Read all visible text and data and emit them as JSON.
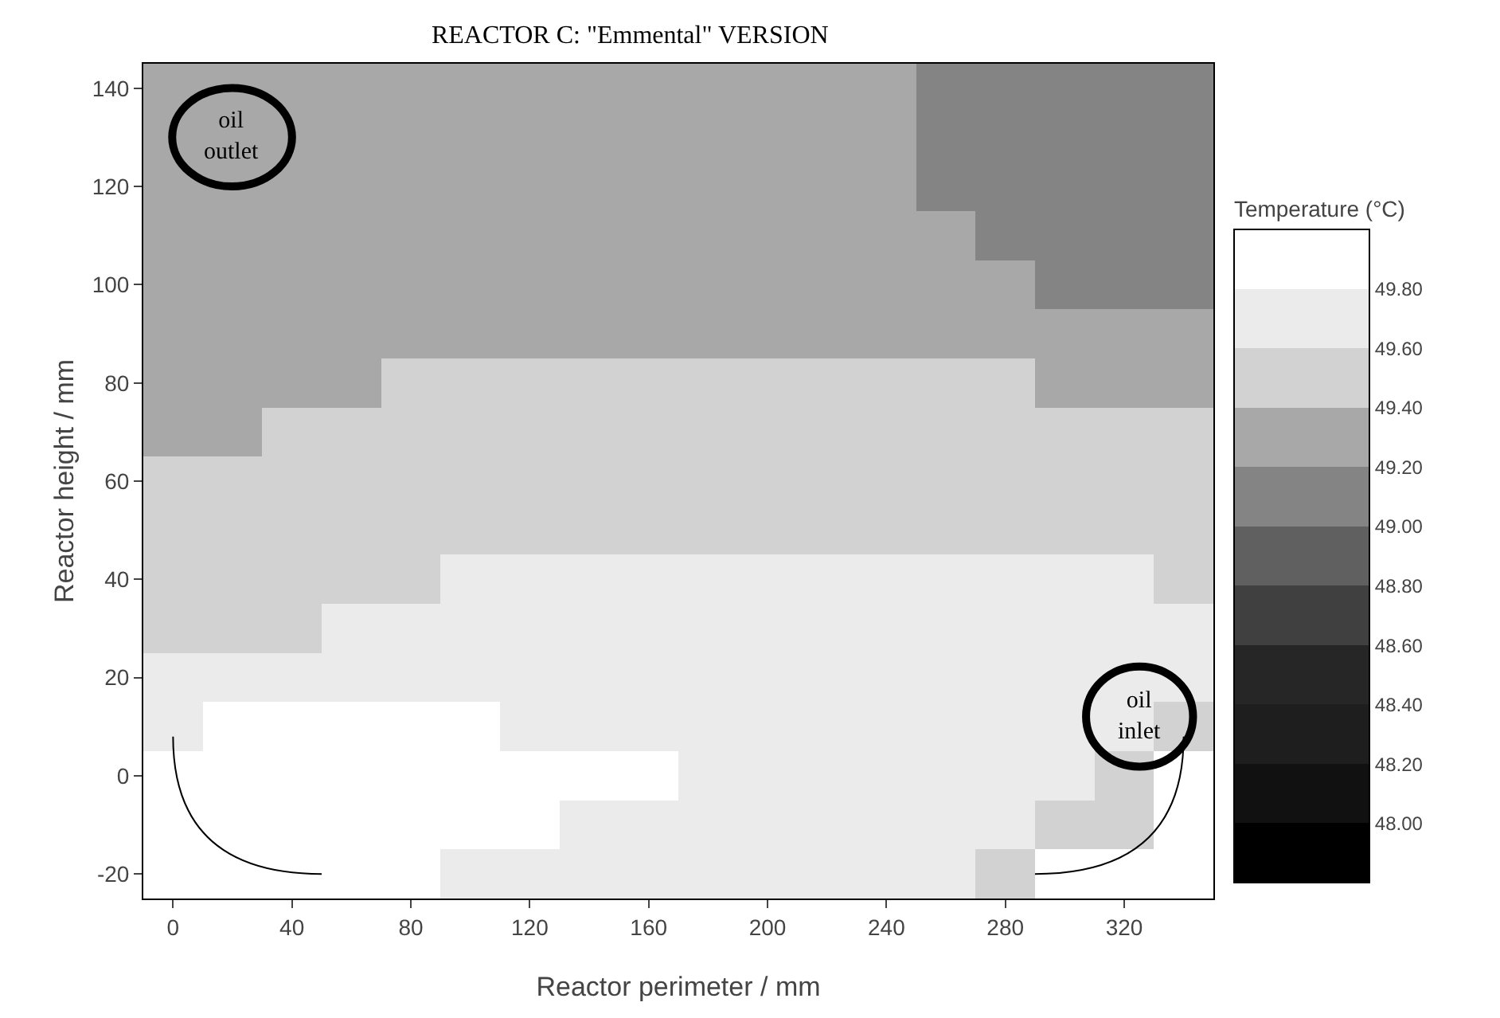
{
  "chart_data": {
    "type": "heatmap",
    "title": "REACTOR C: \"Emmental\" VERSION",
    "xlabel": "Reactor perimeter / mm",
    "ylabel": "Reactor height / mm",
    "clabel": "Temperature (°C)",
    "categories": [
      "0",
      null,
      "40",
      null,
      "80",
      null,
      "120",
      null,
      "160",
      null,
      "200",
      null,
      "240",
      null,
      "280",
      null,
      "320",
      null
    ],
    "y_categories": [
      "140",
      null,
      "120",
      null,
      "100",
      null,
      "80",
      null,
      "60",
      null,
      "40",
      null,
      "20",
      null,
      "0",
      null,
      "-20"
    ],
    "cells": [
      [
        49.3,
        49.3,
        49.3,
        49.3,
        49.3,
        49.3,
        49.3,
        49.3,
        49.3,
        49.3,
        49.3,
        49.3,
        49.3,
        49.1,
        49.1,
        49.1,
        49.1,
        49.1
      ],
      [
        49.3,
        49.3,
        49.3,
        49.3,
        49.3,
        49.3,
        49.3,
        49.3,
        49.3,
        49.3,
        49.3,
        49.3,
        49.3,
        49.1,
        49.1,
        49.1,
        49.1,
        49.1
      ],
      [
        49.3,
        49.3,
        49.3,
        49.3,
        49.3,
        49.3,
        49.3,
        49.3,
        49.3,
        49.3,
        49.3,
        49.3,
        49.3,
        49.1,
        49.1,
        49.1,
        49.1,
        49.1
      ],
      [
        49.3,
        49.3,
        49.3,
        49.3,
        49.3,
        49.3,
        49.3,
        49.3,
        49.3,
        49.3,
        49.3,
        49.3,
        49.3,
        49.3,
        49.1,
        49.1,
        49.1,
        49.1
      ],
      [
        49.3,
        49.3,
        49.3,
        49.3,
        49.3,
        49.3,
        49.3,
        49.3,
        49.3,
        49.3,
        49.3,
        49.3,
        49.3,
        49.3,
        49.3,
        49.1,
        49.1,
        49.1
      ],
      [
        49.3,
        49.3,
        49.3,
        49.3,
        49.3,
        49.3,
        49.3,
        49.3,
        49.3,
        49.3,
        49.3,
        49.3,
        49.3,
        49.3,
        49.3,
        49.3,
        49.3,
        49.3
      ],
      [
        49.3,
        49.3,
        49.3,
        49.3,
        49.5,
        49.5,
        49.5,
        49.5,
        49.5,
        49.5,
        49.5,
        49.5,
        49.5,
        49.5,
        49.5,
        49.3,
        49.3,
        49.3
      ],
      [
        49.3,
        49.3,
        49.5,
        49.5,
        49.5,
        49.5,
        49.5,
        49.5,
        49.5,
        49.5,
        49.5,
        49.5,
        49.5,
        49.5,
        49.5,
        49.5,
        49.5,
        49.5
      ],
      [
        49.5,
        49.5,
        49.5,
        49.5,
        49.5,
        49.5,
        49.5,
        49.5,
        49.5,
        49.5,
        49.5,
        49.5,
        49.5,
        49.5,
        49.5,
        49.5,
        49.5,
        49.5
      ],
      [
        49.5,
        49.5,
        49.5,
        49.5,
        49.5,
        49.5,
        49.5,
        49.5,
        49.5,
        49.5,
        49.5,
        49.5,
        49.5,
        49.5,
        49.5,
        49.5,
        49.5,
        49.5
      ],
      [
        49.5,
        49.5,
        49.5,
        49.5,
        49.5,
        49.7,
        49.7,
        49.7,
        49.7,
        49.7,
        49.7,
        49.7,
        49.7,
        49.7,
        49.7,
        49.7,
        49.7,
        49.5
      ],
      [
        49.5,
        49.5,
        49.5,
        49.7,
        49.7,
        49.7,
        49.7,
        49.7,
        49.7,
        49.7,
        49.7,
        49.7,
        49.7,
        49.7,
        49.7,
        49.7,
        49.7,
        49.7
      ],
      [
        49.7,
        49.7,
        49.7,
        49.7,
        49.7,
        49.7,
        49.7,
        49.7,
        49.7,
        49.7,
        49.7,
        49.7,
        49.7,
        49.7,
        49.7,
        49.7,
        49.7,
        49.7
      ],
      [
        49.7,
        49.9,
        49.9,
        49.9,
        49.9,
        49.9,
        49.7,
        49.7,
        49.7,
        49.7,
        49.7,
        49.7,
        49.7,
        49.7,
        49.7,
        49.7,
        49.7,
        49.5
      ],
      [
        null,
        49.9,
        49.9,
        49.9,
        49.9,
        49.9,
        49.9,
        49.9,
        49.9,
        49.7,
        49.7,
        49.7,
        49.7,
        49.7,
        49.7,
        49.7,
        49.5,
        null
      ],
      [
        null,
        49.9,
        49.9,
        49.9,
        49.9,
        49.9,
        49.9,
        49.7,
        49.7,
        49.7,
        49.7,
        49.7,
        49.7,
        49.7,
        49.7,
        49.5,
        49.5,
        null
      ],
      [
        null,
        null,
        null,
        49.9,
        49.9,
        49.7,
        49.7,
        49.7,
        49.7,
        49.7,
        49.7,
        49.7,
        49.7,
        49.7,
        49.5,
        null,
        null,
        null
      ]
    ],
    "colors": [
      "#000000",
      "#111111",
      "#1e1e1e",
      "#262626",
      "#404040",
      "#606060",
      "#848484",
      "#a8a8a8",
      "#d2d2d2",
      "#ebebeb",
      "#ffffff"
    ],
    "clim": [
      47.8,
      50.0
    ],
    "cticks": [
      {
        "value": 48.0,
        "label": "48.00"
      },
      {
        "value": 48.2,
        "label": "48.20"
      },
      {
        "value": 48.4,
        "label": "48.40"
      },
      {
        "value": 48.6,
        "label": "48.60"
      },
      {
        "value": 48.8,
        "label": "48.80"
      },
      {
        "value": 49.0,
        "label": "49.00"
      },
      {
        "value": 49.2,
        "label": "49.20"
      },
      {
        "value": 49.4,
        "label": "49.40"
      },
      {
        "value": 49.6,
        "label": "49.60"
      },
      {
        "value": 49.8,
        "label": "49.80"
      }
    ],
    "annotations": [
      "oil outlet",
      "oil inlet"
    ]
  }
}
